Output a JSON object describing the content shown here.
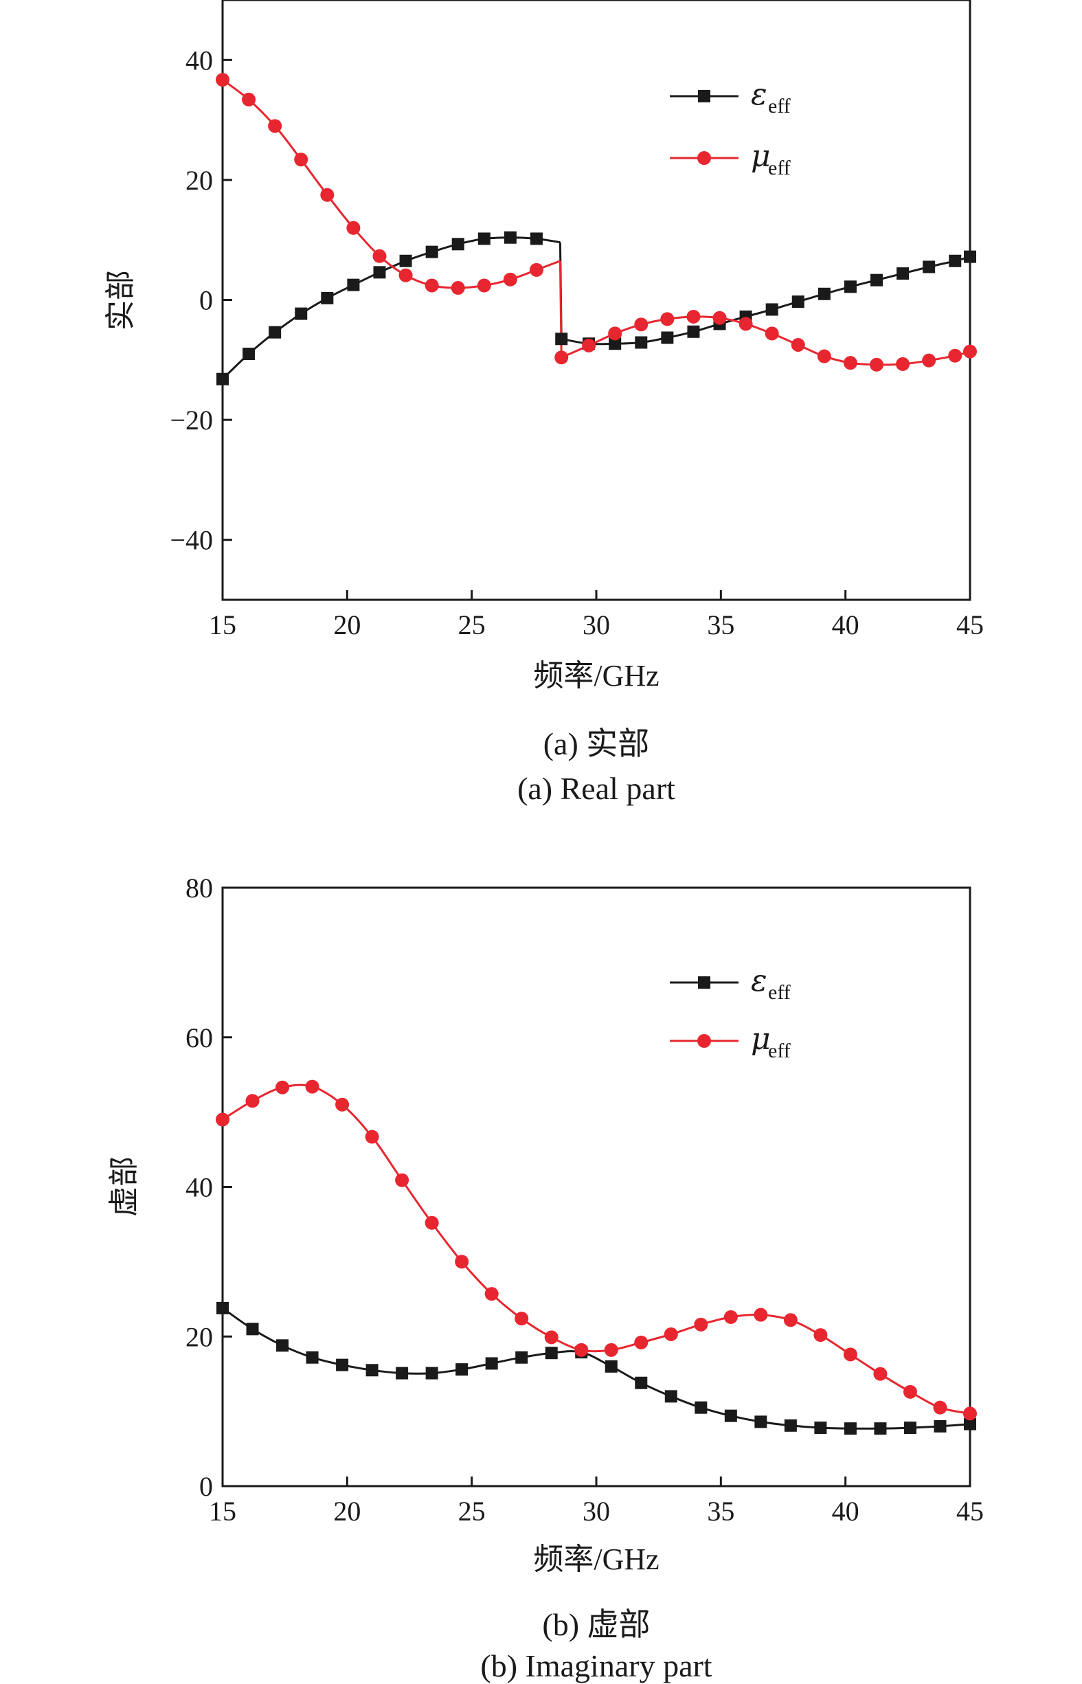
{
  "chart_data": [
    {
      "type": "line",
      "xlabel": "频率/GHz",
      "ylabel": "实部",
      "xlim": [
        15,
        45
      ],
      "ylim": [
        -50,
        50
      ],
      "xticks": [
        15,
        20,
        25,
        30,
        35,
        40,
        45
      ],
      "yticks": [
        -40,
        -20,
        0,
        20,
        40
      ],
      "grid": false,
      "legend_position": "top-right",
      "caption_cn": "(a) 实部",
      "caption_en": "(a) Real part",
      "series": [
        {
          "name": "ε",
          "sub": "eff",
          "color": "#1a1a1a",
          "marker": "square",
          "x": [
            15,
            16.05,
            17.1,
            18.15,
            19.2,
            20.25,
            21.3,
            22.35,
            23.4,
            24.45,
            25.5,
            26.55,
            27.6,
            28.55,
            28.6,
            29.7,
            30.75,
            31.8,
            32.85,
            33.9,
            34.95,
            36,
            37.05,
            38.1,
            39.15,
            40.2,
            41.25,
            42.3,
            43.35,
            44.4,
            45
          ],
          "y": [
            -13.2,
            -9,
            -5.4,
            -2.3,
            0.3,
            2.5,
            4.6,
            6.5,
            8,
            9.3,
            10.2,
            10.4,
            10.2,
            9.6,
            -6.5,
            -7.3,
            -7.3,
            -7.1,
            -6.3,
            -5.3,
            -4,
            -2.8,
            -1.6,
            -0.3,
            1,
            2.2,
            3.3,
            4.4,
            5.5,
            6.5,
            7.2
          ],
          "marker_x": [
            15,
            16.05,
            17.1,
            18.15,
            19.2,
            20.25,
            21.3,
            22.35,
            23.4,
            24.45,
            25.5,
            26.55,
            27.6,
            28.6,
            29.7,
            30.75,
            31.8,
            32.85,
            33.9,
            34.95,
            36,
            37.05,
            38.1,
            39.15,
            40.2,
            41.25,
            42.3,
            43.35,
            44.4,
            45
          ],
          "marker_y": [
            -13.2,
            -9,
            -5.4,
            -2.3,
            0.3,
            2.5,
            4.6,
            6.5,
            8,
            9.3,
            10.2,
            10.4,
            10.2,
            -6.5,
            -7.3,
            -7.3,
            -7.1,
            -6.3,
            -5.3,
            -4,
            -2.8,
            -1.6,
            -0.3,
            1,
            2.2,
            3.3,
            4.4,
            5.5,
            6.5,
            7.2
          ]
        },
        {
          "name": "μ",
          "sub": "eff",
          "color": "#e8262f",
          "marker": "circle",
          "x": [
            15,
            16.05,
            17.1,
            18.15,
            19.2,
            20.25,
            21.3,
            22.35,
            23.4,
            24.45,
            25.5,
            26.55,
            27.6,
            28.55,
            28.6,
            29.7,
            30.75,
            31.8,
            32.85,
            33.9,
            34.95,
            36,
            37.05,
            38.1,
            39.15,
            40.2,
            41.25,
            42.3,
            43.35,
            44.4,
            45
          ],
          "y": [
            36.7,
            33.4,
            29,
            23.4,
            17.5,
            12,
            7.3,
            4.1,
            2.4,
            2,
            2.4,
            3.4,
            5,
            6.5,
            -9.6,
            -7.6,
            -5.6,
            -4.1,
            -3.2,
            -2.8,
            -3,
            -4,
            -5.6,
            -7.5,
            -9.4,
            -10.5,
            -10.8,
            -10.7,
            -10.1,
            -9.3,
            -8.6
          ],
          "marker_x": [
            15,
            16.05,
            17.1,
            18.15,
            19.2,
            20.25,
            21.3,
            22.35,
            23.4,
            24.45,
            25.5,
            26.55,
            27.6,
            28.6,
            29.7,
            30.75,
            31.8,
            32.85,
            33.9,
            34.95,
            36,
            37.05,
            38.1,
            39.15,
            40.2,
            41.25,
            42.3,
            43.35,
            44.4,
            45
          ],
          "marker_y": [
            36.7,
            33.4,
            29,
            23.4,
            17.5,
            12,
            7.3,
            4.1,
            2.4,
            2,
            2.4,
            3.4,
            5,
            -9.6,
            -7.6,
            -5.6,
            -4.1,
            -3.2,
            -2.8,
            -3,
            -4,
            -5.6,
            -7.5,
            -9.4,
            -10.5,
            -10.8,
            -10.7,
            -10.1,
            -9.3,
            -8.6
          ]
        }
      ]
    },
    {
      "type": "line",
      "xlabel": "频率/GHz",
      "ylabel": "虚部",
      "xlim": [
        15,
        45
      ],
      "ylim": [
        0,
        80
      ],
      "xticks": [
        15,
        20,
        25,
        30,
        35,
        40,
        45
      ],
      "yticks": [
        0,
        20,
        40,
        60,
        80
      ],
      "grid": false,
      "legend_position": "top-right",
      "caption_cn": "(b) 虚部",
      "caption_en": "(b) Imaginary part",
      "series": [
        {
          "name": "ε",
          "sub": "eff",
          "color": "#1a1a1a",
          "marker": "square",
          "x": [
            15,
            16.2,
            17.4,
            18.6,
            19.8,
            21,
            22.2,
            23.4,
            24.6,
            25.8,
            27,
            28.2,
            29.4,
            30.6,
            31.8,
            33,
            34.2,
            35.4,
            36.6,
            37.8,
            39,
            40.2,
            41.4,
            42.6,
            43.8,
            45
          ],
          "y": [
            23.8,
            21,
            18.8,
            17.2,
            16.2,
            15.5,
            15.1,
            15.1,
            15.6,
            16.4,
            17.2,
            17.8,
            17.9,
            16,
            13.8,
            12,
            10.5,
            9.4,
            8.6,
            8.1,
            7.8,
            7.7,
            7.7,
            7.8,
            8,
            8.3
          ]
        },
        {
          "name": "μ",
          "sub": "eff",
          "color": "#e8262f",
          "marker": "circle",
          "x": [
            15,
            16.2,
            17.4,
            18.6,
            19.8,
            21,
            22.2,
            23.4,
            24.6,
            25.8,
            27,
            28.2,
            29.4,
            30.6,
            31.8,
            33,
            34.2,
            35.4,
            36.6,
            37.8,
            39,
            40.2,
            41.4,
            42.6,
            43.8,
            45
          ],
          "y": [
            49,
            51.5,
            53.3,
            53.4,
            51,
            46.7,
            40.9,
            35.2,
            30,
            25.7,
            22.4,
            19.9,
            18.2,
            18.2,
            19.2,
            20.3,
            21.6,
            22.6,
            22.9,
            22.2,
            20.2,
            17.6,
            15,
            12.6,
            10.5,
            9.7
          ]
        }
      ]
    }
  ]
}
